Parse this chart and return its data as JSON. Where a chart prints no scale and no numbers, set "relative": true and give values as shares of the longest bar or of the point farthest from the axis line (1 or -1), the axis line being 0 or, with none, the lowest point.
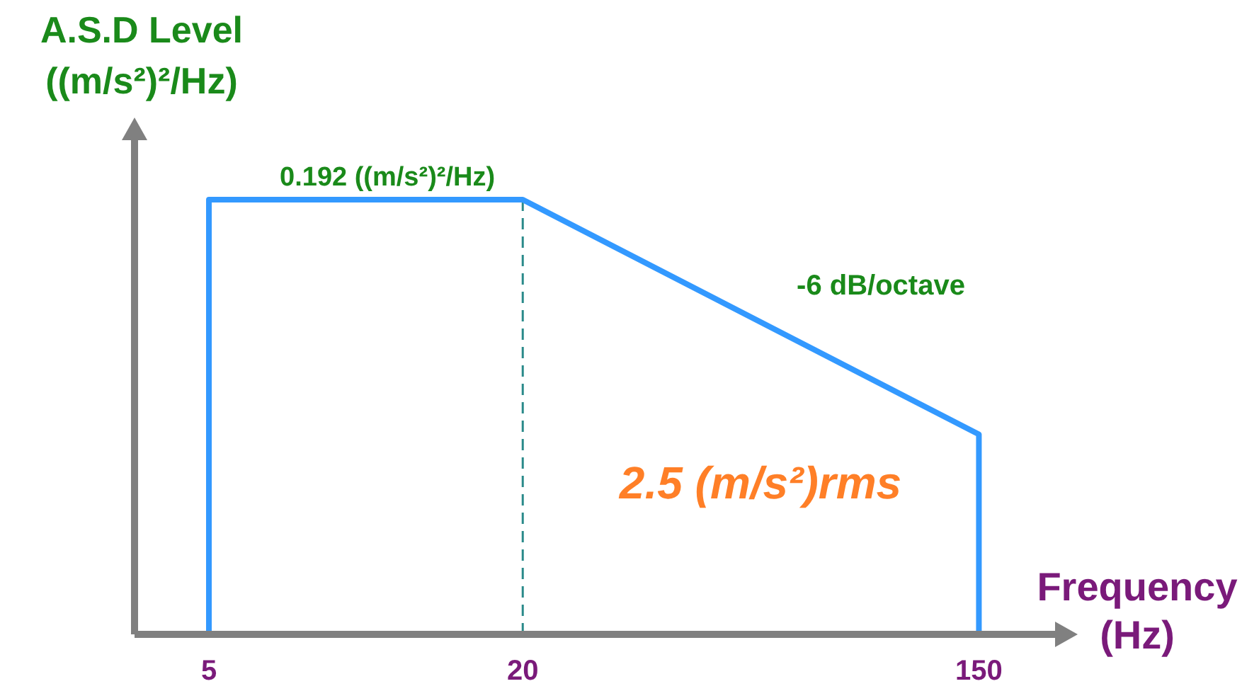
{
  "chart_data": {
    "type": "line",
    "relative": true,
    "ylabel": "A.S.D Level\n((m/s²)²/Hz)",
    "xlabel": "Frequency\n(Hz)",
    "x": [
      5,
      5,
      20,
      150,
      150
    ],
    "series": [
      {
        "color": "#3399ff",
        "values": [
          0,
          1,
          1,
          0.46,
          0
        ]
      }
    ],
    "log": "x",
    "xlim": [
      3.6,
      210
    ],
    "xticks": [
      5,
      20,
      150
    ],
    "tick_labels": "x",
    "grid": false,
    "marker": "none",
    "line_style": "solid",
    "ref_lines": [
      {
        "axis": "x",
        "value": 20,
        "color": "#2a8a8a",
        "line_style": "dashed"
      }
    ],
    "annotations": [
      {
        "text": "0.192 ((m/s²)²/Hz)",
        "x": 11,
        "y": 1
      },
      "-6 dB/octave",
      "2.5 (m/s²)rms"
    ]
  }
}
